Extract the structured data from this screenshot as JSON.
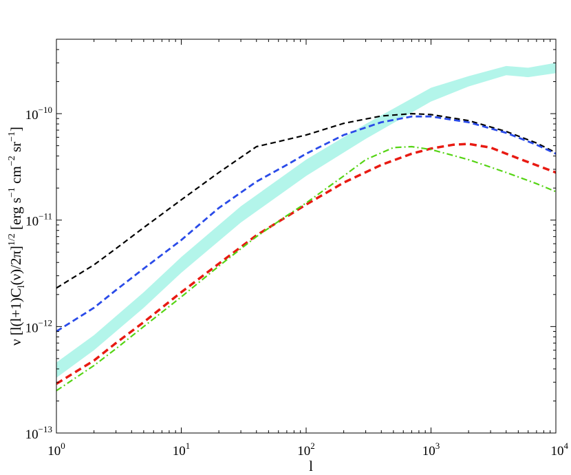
{
  "chart_data": {
    "type": "line",
    "xlabel": "l",
    "ylabel": "ν [l(l+1)C_l(ν)/2π]^{1/2} [erg s^{-1} cm^{-2} sr^{-1}]",
    "x_scale": "log",
    "y_scale": "log",
    "xlim": [
      1,
      10000
    ],
    "ylim": [
      1e-13,
      5e-10
    ],
    "grid": false,
    "x_ticks": [
      {
        "base": "10",
        "exp": "0",
        "value": 1
      },
      {
        "base": "10",
        "exp": "1",
        "value": 10
      },
      {
        "base": "10",
        "exp": "2",
        "value": 100
      },
      {
        "base": "10",
        "exp": "3",
        "value": 1000
      },
      {
        "base": "10",
        "exp": "4",
        "value": 10000
      }
    ],
    "y_ticks": [
      {
        "base": "10",
        "exp": "−13",
        "value": 1e-13
      },
      {
        "base": "10",
        "exp": "−12",
        "value": 1e-12
      },
      {
        "base": "10",
        "exp": "−11",
        "value": 1e-11
      },
      {
        "base": "10",
        "exp": "−10",
        "value": 1e-10
      }
    ],
    "band": {
      "color": "#b3f5ea",
      "x": [
        1,
        2,
        5,
        10,
        30,
        100,
        300,
        1000,
        2000,
        4000,
        6000,
        10000
      ],
      "lower": [
        3.3e-13,
        6e-13,
        1.5e-12,
        3.2e-12,
        9.5e-12,
        2.6e-11,
        5.8e-11,
        1.3e-10,
        1.8e-10,
        2.3e-10,
        2.2e-10,
        2.4e-10
      ],
      "upper": [
        4.6e-13,
        8.3e-13,
        2.1e-12,
        4.5e-12,
        1.35e-11,
        3.7e-11,
        8e-11,
        1.75e-10,
        2.25e-10,
        2.8e-10,
        2.7e-10,
        3e-10
      ]
    },
    "series": [
      {
        "color": "#000000",
        "dash": "8,5",
        "width": 2.2,
        "x": [
          1,
          2,
          3,
          5,
          10,
          20,
          40,
          70,
          100,
          200,
          400,
          700,
          1000,
          2000,
          4000,
          7000,
          10000
        ],
        "y": [
          2.3e-12,
          3.8e-12,
          5.4e-12,
          8.5e-12,
          1.55e-11,
          2.8e-11,
          4.9e-11,
          5.7e-11,
          6.3e-11,
          8.1e-11,
          9.5e-11,
          1e-10,
          9.8e-11,
          8.6e-11,
          6.8e-11,
          5.3e-11,
          4.3e-11
        ]
      },
      {
        "color": "#2a4be8",
        "dash": "9,5",
        "width": 2.8,
        "x": [
          1,
          2,
          3,
          5,
          10,
          20,
          40,
          70,
          100,
          200,
          400,
          700,
          1000,
          2000,
          4000,
          7000,
          10000
        ],
        "y": [
          9e-13,
          1.5e-12,
          2.2e-12,
          3.5e-12,
          6.5e-12,
          1.3e-11,
          2.3e-11,
          3.3e-11,
          4.2e-11,
          6.3e-11,
          8.3e-11,
          9.4e-11,
          9.4e-11,
          8.3e-11,
          6.6e-11,
          5.1e-11,
          4.2e-11
        ]
      },
      {
        "color": "#e81a12",
        "dash": "10,6",
        "width": 3.5,
        "x": [
          1,
          2,
          3,
          5,
          10,
          20,
          40,
          70,
          100,
          200,
          400,
          700,
          1000,
          1500,
          2000,
          3000,
          5000,
          10000
        ],
        "y": [
          2.9e-13,
          4.8e-13,
          7e-13,
          1.1e-12,
          2.1e-12,
          3.9e-12,
          7.2e-12,
          1.08e-11,
          1.4e-11,
          2.25e-11,
          3.3e-11,
          4.2e-11,
          4.7e-11,
          5.1e-11,
          5.2e-11,
          4.8e-11,
          3.8e-11,
          2.8e-11
        ]
      },
      {
        "color": "#55d414",
        "dash": "9,4,2,4",
        "width": 2.2,
        "x": [
          1,
          2,
          3,
          5,
          10,
          20,
          40,
          70,
          100,
          200,
          300,
          500,
          700,
          1000,
          2000,
          4000,
          7000,
          10000
        ],
        "y": [
          2.5e-13,
          4.3e-13,
          6.2e-13,
          1e-12,
          1.9e-12,
          3.7e-12,
          7e-12,
          1.1e-11,
          1.45e-11,
          2.6e-11,
          3.7e-11,
          4.8e-11,
          4.9e-11,
          4.6e-11,
          3.7e-11,
          2.8e-11,
          2.2e-11,
          1.85e-11
        ]
      }
    ]
  }
}
